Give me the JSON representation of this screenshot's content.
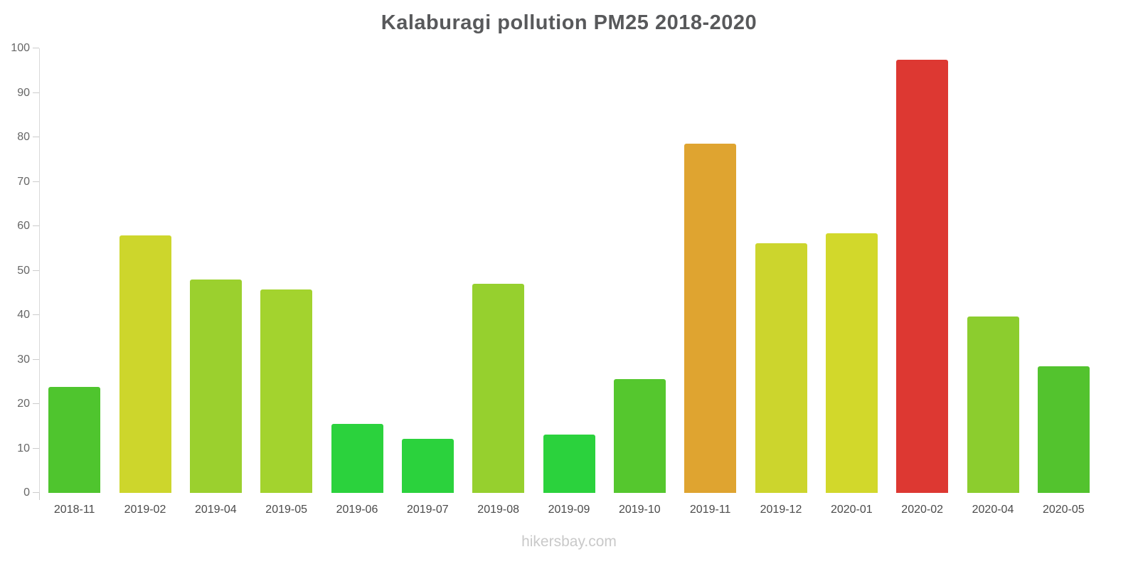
{
  "title": "Kalaburagi pollution PM25 2018-2020",
  "watermark": "hikersbay.com",
  "chart_data": {
    "type": "bar",
    "title": "Kalaburagi pollution PM25 2018-2020",
    "xlabel": "",
    "ylabel": "",
    "ylim": [
      0,
      100
    ],
    "yticks": [
      0,
      10,
      20,
      30,
      40,
      50,
      60,
      70,
      80,
      90,
      100
    ],
    "grid": false,
    "legend": false,
    "categories": [
      "2018-11",
      "2019-02",
      "2019-04",
      "2019-05",
      "2019-06",
      "2019-07",
      "2019-08",
      "2019-09",
      "2019-10",
      "2019-11",
      "2019-12",
      "2020-01",
      "2020-02",
      "2020-04",
      "2020-05"
    ],
    "values": [
      23.8,
      58.0,
      48.0,
      45.8,
      15.5,
      12.2,
      47.0,
      13.2,
      25.6,
      78.5,
      56.2,
      58.4,
      97.5,
      39.7,
      28.5
    ],
    "colors": [
      "#4fc52e",
      "#cdd62c",
      "#9bd02e",
      "#a3d32e",
      "#2bd23d",
      "#2bd23d",
      "#96d02e",
      "#2bd23d",
      "#55c72e",
      "#dfa430",
      "#ccd52d",
      "#d2d82b",
      "#dd3832",
      "#8ccd2e",
      "#53c32e"
    ],
    "axis_color": "#cccccc",
    "tick_label_color": "#666666",
    "x_label_color": "#4a4a4a"
  }
}
